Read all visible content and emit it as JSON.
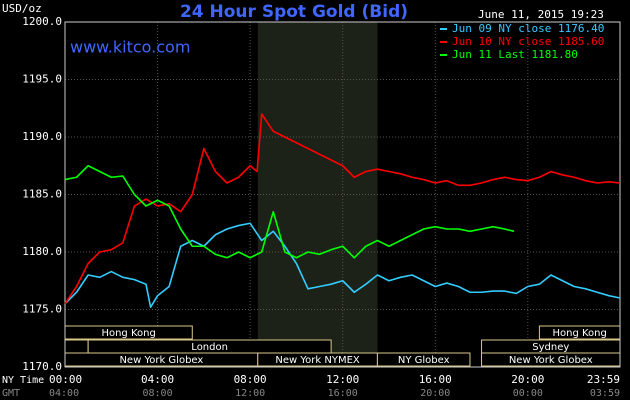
{
  "chart_data": {
    "type": "line",
    "title": "24 Hour Spot Gold (Bid)",
    "ylabel": "USD/oz",
    "timestamp": "June 11, 2015 19:23",
    "watermark": "www.kitco.com",
    "xlabel": "NY Time",
    "x2label": "GMT",
    "xlim": [
      0,
      23.983
    ],
    "ylim": [
      1170,
      1200
    ],
    "yticks": [
      {
        "value": 1170,
        "label": "1170.0"
      },
      {
        "value": 1175,
        "label": "1175.0"
      },
      {
        "value": 1180,
        "label": "1180.0"
      },
      {
        "value": 1185,
        "label": "1185.0"
      },
      {
        "value": 1190,
        "label": "1190.0"
      },
      {
        "value": 1195,
        "label": "1195.0"
      },
      {
        "value": 1200,
        "label": "1200.0"
      }
    ],
    "xticks": [
      {
        "value": 0,
        "label": "00:00"
      },
      {
        "value": 4,
        "label": "04:00"
      },
      {
        "value": 8,
        "label": "08:00"
      },
      {
        "value": 12,
        "label": "12:00"
      },
      {
        "value": 16,
        "label": "16:00"
      },
      {
        "value": 20,
        "label": "20:00"
      },
      {
        "value": 23.983,
        "label": "23:59"
      }
    ],
    "x2ticks": [
      {
        "value": 0,
        "label": "04:00"
      },
      {
        "value": 4,
        "label": "08:00"
      },
      {
        "value": 8,
        "label": "12:00"
      },
      {
        "value": 12,
        "label": "16:00"
      },
      {
        "value": 16,
        "label": "20:00"
      },
      {
        "value": 20,
        "label": "00:00"
      },
      {
        "value": 23.983,
        "label": "03:59"
      }
    ],
    "grid": true,
    "highlight": [
      8.33,
      13.5
    ],
    "sessions": [
      [
        {
          "label": "Hong Kong",
          "start": 0,
          "end": 5.5
        },
        {
          "label": "Hong Kong",
          "start": 20.5,
          "end": 23.983
        }
      ],
      [
        {
          "label": null,
          "start": 0,
          "end": 1
        },
        {
          "label": "London",
          "start": 1,
          "end": 11.5
        },
        {
          "label": "Sydney",
          "start": 18,
          "end": 23.983
        }
      ],
      [
        {
          "label": "New York Globex",
          "start": 0,
          "end": 8.33
        },
        {
          "label": "New York NYMEX",
          "start": 8.33,
          "end": 13.5
        },
        {
          "label": "NY Globex",
          "start": 13.5,
          "end": 17.5
        },
        {
          "label": "New York Globex",
          "start": 18,
          "end": 23.983
        }
      ]
    ],
    "series": [
      {
        "name": "Jun 09 NY close 1176.40",
        "color": "#33ccff",
        "x": [
          0,
          0.5,
          1,
          1.5,
          2,
          2.5,
          3,
          3.5,
          3.7,
          4,
          4.5,
          5,
          5.5,
          6,
          6.5,
          7,
          7.5,
          8,
          8.5,
          9,
          9.5,
          10,
          10.5,
          11,
          11.5,
          12,
          12.5,
          13,
          13.5,
          14,
          14.5,
          15,
          15.5,
          16,
          16.5,
          17,
          17.5,
          18,
          18.5,
          19,
          19.5,
          20,
          20.5,
          21,
          21.5,
          22,
          22.5,
          23,
          23.5,
          23.983
        ],
        "values": [
          1175.5,
          1176.5,
          1178,
          1177.8,
          1178.3,
          1177.8,
          1177.6,
          1177.2,
          1175.2,
          1176.2,
          1177,
          1180.5,
          1181,
          1180.5,
          1181.5,
          1182,
          1182.3,
          1182.5,
          1181,
          1181.8,
          1180.5,
          1179,
          1176.8,
          1177,
          1177.2,
          1177.5,
          1176.5,
          1177.2,
          1178,
          1177.5,
          1177.8,
          1178,
          1177.5,
          1177,
          1177.3,
          1177,
          1176.5,
          1176.5,
          1176.6,
          1176.6,
          1176.4,
          1177,
          1177.2,
          1178,
          1177.5,
          1177,
          1176.8,
          1176.5,
          1176.2,
          1176
        ]
      },
      {
        "name": "Jun 10 NY close 1185.60",
        "color": "#ff0000",
        "x": [
          0,
          0.5,
          1,
          1.5,
          2,
          2.5,
          3,
          3.5,
          4,
          4.5,
          5,
          5.5,
          6,
          6.5,
          7,
          7.5,
          8,
          8.3,
          8.5,
          9,
          9.5,
          10,
          10.5,
          11,
          11.5,
          12,
          12.5,
          13,
          13.5,
          14,
          14.5,
          15,
          15.5,
          16,
          16.5,
          17,
          17.5,
          18,
          18.5,
          19,
          19.5,
          20,
          20.5,
          21,
          21.5,
          22,
          22.5,
          23,
          23.5,
          23.983
        ],
        "values": [
          1175.5,
          1177,
          1179,
          1180,
          1180.2,
          1180.8,
          1184,
          1184.6,
          1184,
          1184.2,
          1183.5,
          1185,
          1189,
          1187,
          1186,
          1186.5,
          1187.5,
          1187,
          1192,
          1190.5,
          1190,
          1189.5,
          1189,
          1188.5,
          1188,
          1187.5,
          1186.5,
          1187,
          1187.2,
          1187,
          1186.8,
          1186.5,
          1186.3,
          1186,
          1186.2,
          1185.8,
          1185.8,
          1186,
          1186.3,
          1186.5,
          1186.3,
          1186.2,
          1186.5,
          1187,
          1186.7,
          1186.5,
          1186.2,
          1186,
          1186.1,
          1186
        ]
      },
      {
        "name": "Jun 11 Last 1181.80",
        "color": "#00ff00",
        "x": [
          0,
          0.5,
          1,
          1.5,
          2,
          2.5,
          3,
          3.5,
          4,
          4.5,
          5,
          5.5,
          6,
          6.5,
          7,
          7.5,
          8,
          8.5,
          9,
          9.5,
          10,
          10.5,
          11,
          11.5,
          12,
          12.5,
          13,
          13.5,
          14,
          14.5,
          15,
          15.5,
          16,
          16.5,
          17,
          17.5,
          18,
          18.5,
          19,
          19.4
        ],
        "values": [
          1186.3,
          1186.5,
          1187.5,
          1187,
          1186.5,
          1186.6,
          1185,
          1184,
          1184.5,
          1184,
          1182,
          1180.5,
          1180.5,
          1179.8,
          1179.5,
          1180,
          1179.5,
          1180,
          1183.5,
          1180,
          1179.5,
          1180,
          1179.8,
          1180.2,
          1180.5,
          1179.5,
          1180.5,
          1181,
          1180.5,
          1181,
          1181.5,
          1182,
          1182.2,
          1182,
          1182,
          1181.8,
          1182,
          1182.2,
          1182,
          1181.8
        ]
      }
    ]
  }
}
